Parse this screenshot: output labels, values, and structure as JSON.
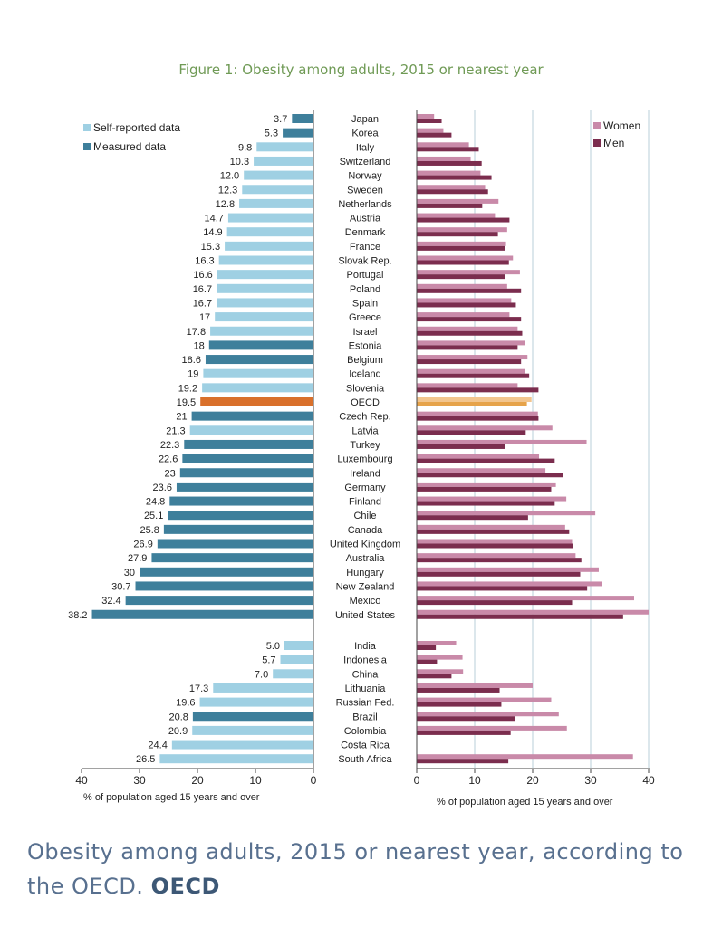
{
  "title": "Figure 1: Obesity among adults, 2015 or nearest year",
  "caption": {
    "text": "Obesity among adults, 2015 or nearest year, according to the OECD.",
    "source": "OECD"
  },
  "colors": {
    "self_reported": "#9fd0e3",
    "measured": "#3e7f9b",
    "oecd": "#d9702b",
    "women": "#c98aa9",
    "men": "#7b2d4e",
    "oecd_women": "#f2c58e",
    "oecd_men": "#e6a34a",
    "grid": "#b9cfd8"
  },
  "chart_data": [
    {
      "type": "bar",
      "orientation": "horizontal-left",
      "xlabel": "% of population aged 15 years and over",
      "xlim": [
        0,
        40
      ],
      "xticks": [
        "40",
        "30",
        "20",
        "10",
        "0"
      ],
      "legend": [
        {
          "label": "Self-reported data",
          "key": "self"
        },
        {
          "label": "Measured data",
          "key": "measured"
        }
      ],
      "groups": [
        {
          "rows": [
            {
              "country": "Japan",
              "label": "3.7",
              "value": 3.7,
              "type": "measured"
            },
            {
              "country": "Korea",
              "label": "5.3",
              "value": 5.3,
              "type": "measured"
            },
            {
              "country": "Italy",
              "label": "9.8",
              "value": 9.8,
              "type": "self"
            },
            {
              "country": "Switzerland",
              "label": "10.3",
              "value": 10.3,
              "type": "self"
            },
            {
              "country": "Norway",
              "label": "12.0",
              "value": 12.0,
              "type": "self"
            },
            {
              "country": "Sweden",
              "label": "12.3",
              "value": 12.3,
              "type": "self"
            },
            {
              "country": "Netherlands",
              "label": "12.8",
              "value": 12.8,
              "type": "self"
            },
            {
              "country": "Austria",
              "label": "14.7",
              "value": 14.7,
              "type": "self"
            },
            {
              "country": "Denmark",
              "label": "14.9",
              "value": 14.9,
              "type": "self"
            },
            {
              "country": "France",
              "label": "15.3",
              "value": 15.3,
              "type": "self"
            },
            {
              "country": "Slovak Rep.",
              "label": "16.3",
              "value": 16.3,
              "type": "self"
            },
            {
              "country": "Portugal",
              "label": "16.6",
              "value": 16.6,
              "type": "self"
            },
            {
              "country": "Poland",
              "label": "16.7",
              "value": 16.7,
              "type": "self"
            },
            {
              "country": "Spain",
              "label": "16.7",
              "value": 16.7,
              "type": "self"
            },
            {
              "country": "Greece",
              "label": "17",
              "value": 17,
              "type": "self"
            },
            {
              "country": "Israel",
              "label": "17.8",
              "value": 17.8,
              "type": "self"
            },
            {
              "country": "Estonia",
              "label": "18",
              "value": 18,
              "type": "measured"
            },
            {
              "country": "Belgium",
              "label": "18.6",
              "value": 18.6,
              "type": "measured"
            },
            {
              "country": "Iceland",
              "label": "19",
              "value": 19,
              "type": "self"
            },
            {
              "country": "Slovenia",
              "label": "19.2",
              "value": 19.2,
              "type": "self"
            },
            {
              "country": "OECD",
              "label": "19.5",
              "value": 19.5,
              "type": "oecd"
            },
            {
              "country": "Czech Rep.",
              "label": "21",
              "value": 21,
              "type": "measured"
            },
            {
              "country": "Latvia",
              "label": "21.3",
              "value": 21.3,
              "type": "self"
            },
            {
              "country": "Turkey",
              "label": "22.3",
              "value": 22.3,
              "type": "measured"
            },
            {
              "country": "Luxembourg",
              "label": "22.6",
              "value": 22.6,
              "type": "measured"
            },
            {
              "country": "Ireland",
              "label": "23",
              "value": 23,
              "type": "measured"
            },
            {
              "country": "Germany",
              "label": "23.6",
              "value": 23.6,
              "type": "measured"
            },
            {
              "country": "Finland",
              "label": "24.8",
              "value": 24.8,
              "type": "measured"
            },
            {
              "country": "Chile",
              "label": "25.1",
              "value": 25.1,
              "type": "measured"
            },
            {
              "country": "Canada",
              "label": "25.8",
              "value": 25.8,
              "type": "measured"
            },
            {
              "country": "United Kingdom",
              "label": "26.9",
              "value": 26.9,
              "type": "measured"
            },
            {
              "country": "Australia",
              "label": "27.9",
              "value": 27.9,
              "type": "measured"
            },
            {
              "country": "Hungary",
              "label": "30",
              "value": 30,
              "type": "measured"
            },
            {
              "country": "New Zealand",
              "label": "30.7",
              "value": 30.7,
              "type": "measured"
            },
            {
              "country": "Mexico",
              "label": "32.4",
              "value": 32.4,
              "type": "measured"
            },
            {
              "country": "United States",
              "label": "38.2",
              "value": 38.2,
              "type": "measured"
            }
          ]
        },
        {
          "rows": [
            {
              "country": "India",
              "label": "5.0",
              "value": 5.0,
              "type": "self"
            },
            {
              "country": "Indonesia",
              "label": "5.7",
              "value": 5.7,
              "type": "self"
            },
            {
              "country": "China",
              "label": "7.0",
              "value": 7.0,
              "type": "self"
            },
            {
              "country": "Lithuania",
              "label": "17.3",
              "value": 17.3,
              "type": "self"
            },
            {
              "country": "Russian Fed.",
              "label": "19.6",
              "value": 19.6,
              "type": "self"
            },
            {
              "country": "Brazil",
              "label": "20.8",
              "value": 20.8,
              "type": "measured"
            },
            {
              "country": "Colombia",
              "label": "20.9",
              "value": 20.9,
              "type": "self"
            },
            {
              "country": "Costa Rica",
              "label": "24.4",
              "value": 24.4,
              "type": "self"
            },
            {
              "country": "South Africa",
              "label": "26.5",
              "value": 26.5,
              "type": "self"
            }
          ]
        }
      ]
    },
    {
      "type": "bar",
      "orientation": "horizontal-right",
      "xlabel": "% of population aged 15 years and over",
      "xlim": [
        0,
        40
      ],
      "xticks": [
        "0",
        "10",
        "20",
        "30",
        "40"
      ],
      "grid": true,
      "legend": [
        {
          "label": "Women",
          "key": "women"
        },
        {
          "label": "Men",
          "key": "men"
        }
      ],
      "series_names": [
        "Women",
        "Men"
      ],
      "groups": [
        {
          "rows": [
            {
              "country": "Japan",
              "women": 3.0,
              "men": 4.3
            },
            {
              "country": "Korea",
              "women": 4.6,
              "men": 6.0
            },
            {
              "country": "Italy",
              "women": 9.0,
              "men": 10.7
            },
            {
              "country": "Switzerland",
              "women": 9.3,
              "men": 11.2
            },
            {
              "country": "Norway",
              "women": 11.0,
              "men": 12.9
            },
            {
              "country": "Sweden",
              "women": 11.8,
              "men": 12.3
            },
            {
              "country": "Netherlands",
              "women": 14.1,
              "men": 11.3
            },
            {
              "country": "Austria",
              "women": 13.5,
              "men": 16.0
            },
            {
              "country": "Denmark",
              "women": 15.6,
              "men": 14.0
            },
            {
              "country": "France",
              "women": 15.4,
              "men": 15.3
            },
            {
              "country": "Slovak Rep.",
              "women": 16.6,
              "men": 15.9
            },
            {
              "country": "Portugal",
              "women": 17.8,
              "men": 15.3
            },
            {
              "country": "Poland",
              "women": 15.6,
              "men": 18.0
            },
            {
              "country": "Spain",
              "women": 16.3,
              "men": 17.1
            },
            {
              "country": "Greece",
              "women": 16.0,
              "men": 18.0
            },
            {
              "country": "Israel",
              "women": 17.4,
              "men": 18.2
            },
            {
              "country": "Estonia",
              "women": 18.6,
              "men": 17.4
            },
            {
              "country": "Belgium",
              "women": 19.1,
              "men": 18.0
            },
            {
              "country": "Iceland",
              "women": 18.6,
              "men": 19.4
            },
            {
              "country": "Slovenia",
              "women": 17.4,
              "men": 21.0
            },
            {
              "country": "OECD",
              "women": 19.8,
              "men": 19.0
            },
            {
              "country": "Czech Rep.",
              "women": 20.9,
              "men": 21.0
            },
            {
              "country": "Latvia",
              "women": 23.4,
              "men": 18.8
            },
            {
              "country": "Turkey",
              "women": 29.3,
              "men": 15.3
            },
            {
              "country": "Luxembourg",
              "women": 21.1,
              "men": 23.8
            },
            {
              "country": "Ireland",
              "women": 22.2,
              "men": 25.2
            },
            {
              "country": "Germany",
              "women": 24.0,
              "men": 23.2
            },
            {
              "country": "Finland",
              "women": 25.8,
              "men": 23.8
            },
            {
              "country": "Chile",
              "women": 30.8,
              "men": 19.2
            },
            {
              "country": "Canada",
              "women": 25.6,
              "men": 26.3
            },
            {
              "country": "United Kingdom",
              "women": 26.8,
              "men": 26.9
            },
            {
              "country": "Australia",
              "women": 27.4,
              "men": 28.4
            },
            {
              "country": "Hungary",
              "women": 31.4,
              "men": 28.2
            },
            {
              "country": "New Zealand",
              "women": 32.0,
              "men": 29.4
            },
            {
              "country": "Mexico",
              "women": 37.5,
              "men": 26.8
            },
            {
              "country": "United States",
              "women": 40.0,
              "men": 35.6
            }
          ]
        },
        {
          "rows": [
            {
              "country": "India",
              "women": 6.8,
              "men": 3.3
            },
            {
              "country": "Indonesia",
              "women": 7.9,
              "men": 3.5
            },
            {
              "country": "China",
              "women": 8.0,
              "men": 6.0
            },
            {
              "country": "Lithuania",
              "women": 20.0,
              "men": 14.3
            },
            {
              "country": "Russian Fed.",
              "women": 23.2,
              "men": 14.6
            },
            {
              "country": "Brazil",
              "women": 24.5,
              "men": 16.9
            },
            {
              "country": "Colombia",
              "women": 25.9,
              "men": 16.2
            },
            {
              "country": "Costa Rica",
              "women": 0,
              "men": 0
            },
            {
              "country": "South Africa",
              "women": 37.3,
              "men": 15.8
            }
          ]
        }
      ]
    }
  ]
}
